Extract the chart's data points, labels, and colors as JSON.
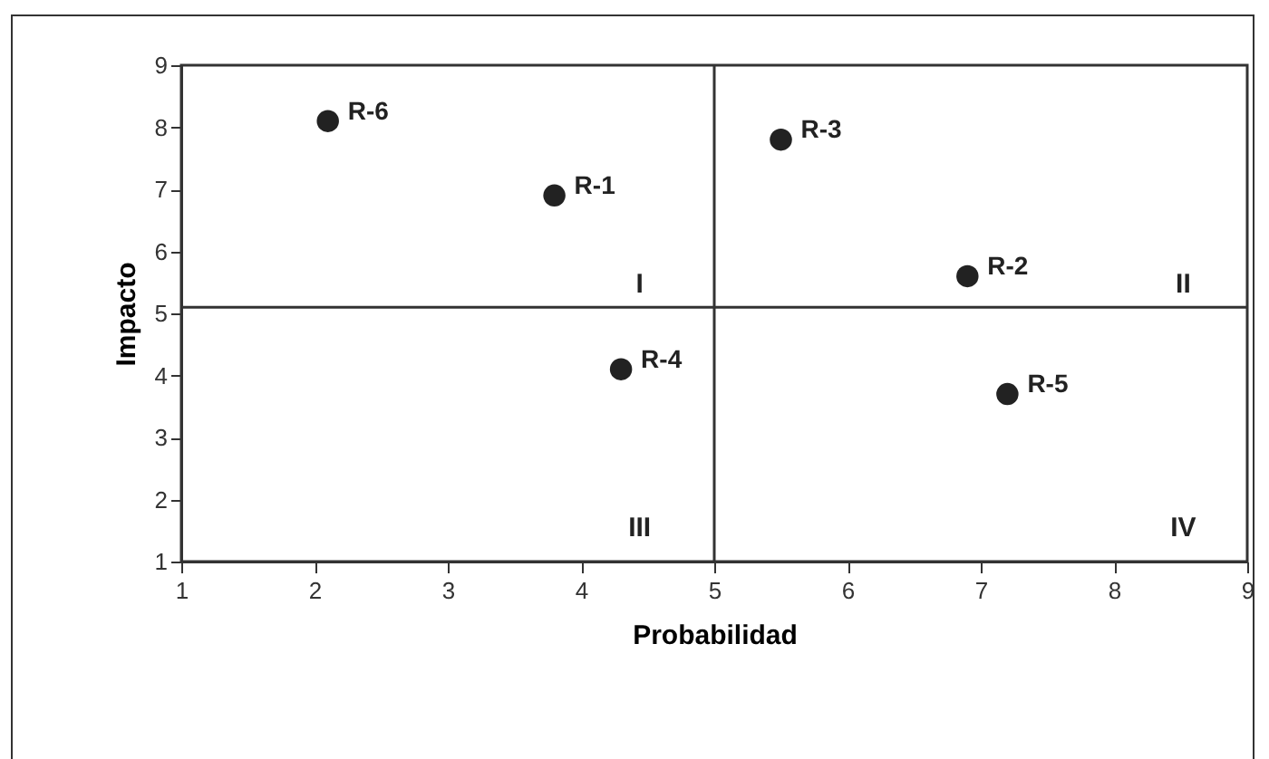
{
  "chart_data": {
    "type": "scatter",
    "xlabel": "Probabilidad",
    "ylabel": "Impacto",
    "xlim": [
      1,
      9
    ],
    "xticks": [
      1,
      2,
      3,
      4,
      5,
      6,
      7,
      8,
      9
    ],
    "ylim": [
      1,
      9
    ],
    "yticks": [
      1,
      2,
      3,
      4,
      5,
      6,
      7,
      8,
      9
    ],
    "grid": false,
    "marker": "circle",
    "series": [
      {
        "name": "R-1",
        "color": "#222222",
        "x": [
          3.8
        ],
        "values": [
          6.9
        ]
      },
      {
        "name": "R-2",
        "color": "#222222",
        "x": [
          6.9
        ],
        "values": [
          5.6
        ]
      },
      {
        "name": "R-3",
        "color": "#222222",
        "x": [
          5.5
        ],
        "values": [
          7.8
        ]
      },
      {
        "name": "R-4",
        "color": "#222222",
        "x": [
          4.3
        ],
        "values": [
          4.1
        ]
      },
      {
        "name": "R-5",
        "color": "#222222",
        "x": [
          7.2
        ],
        "values": [
          3.7
        ]
      },
      {
        "name": "R-6",
        "color": "#222222",
        "x": [
          2.1
        ],
        "values": [
          8.1
        ]
      }
    ],
    "ref_lines": [
      {
        "axis": "x",
        "value": 5,
        "color": "#333333"
      },
      {
        "axis": "y",
        "value": 5.1,
        "color": "#333333"
      }
    ],
    "annotations": [
      "I",
      "II",
      "III",
      "IV"
    ]
  }
}
